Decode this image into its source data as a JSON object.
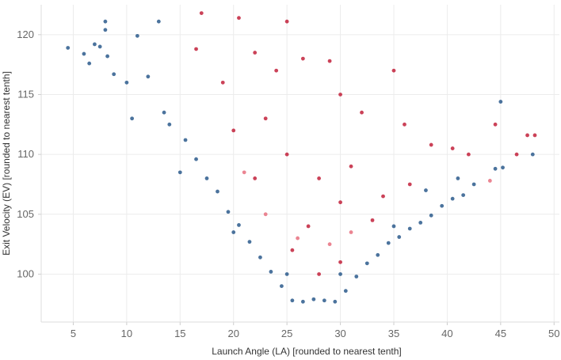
{
  "chart_data": {
    "type": "scatter",
    "title": "",
    "xlabel": "Launch Angle (LA) [rounded to nearest tenth]",
    "ylabel": "Exit Velocity (EV) [rounded to nearest tenth]",
    "xlim": [
      2,
      50.5
    ],
    "ylim": [
      96.0,
      122.5
    ],
    "x_ticks": [
      5,
      10,
      15,
      20,
      25,
      30,
      35,
      40,
      45,
      50
    ],
    "y_ticks": [
      100,
      105,
      110,
      115,
      120
    ],
    "grid": true,
    "legend": "none",
    "colors": {
      "blue": "#2b5a8c",
      "light_blue": "#6d95c2",
      "red": "#c2213b",
      "light_red": "#e8707f"
    },
    "series": [
      {
        "name": "blue",
        "color": "#2b5a8c",
        "points": [
          [
            4.5,
            118.9
          ],
          [
            6.0,
            118.4
          ],
          [
            6.5,
            117.6
          ],
          [
            7.0,
            119.2
          ],
          [
            7.5,
            119.0
          ],
          [
            8.0,
            121.1
          ],
          [
            8.0,
            120.4
          ],
          [
            8.2,
            118.2
          ],
          [
            8.8,
            116.7
          ],
          [
            10.0,
            116.0
          ],
          [
            11.0,
            119.9
          ],
          [
            13.0,
            121.1
          ],
          [
            12.0,
            116.5
          ],
          [
            13.5,
            113.5
          ],
          [
            14.0,
            112.5
          ],
          [
            15.5,
            111.2
          ],
          [
            16.5,
            109.6
          ],
          [
            17.5,
            108.0
          ],
          [
            18.5,
            106.9
          ],
          [
            19.5,
            105.2
          ],
          [
            20.5,
            104.1
          ],
          [
            21.5,
            102.7
          ],
          [
            22.5,
            101.4
          ],
          [
            23.5,
            100.2
          ],
          [
            24.5,
            99.0
          ],
          [
            25.5,
            97.8
          ],
          [
            26.5,
            97.7
          ],
          [
            27.5,
            97.9
          ],
          [
            28.5,
            97.8
          ],
          [
            29.5,
            97.7
          ],
          [
            30.5,
            98.6
          ],
          [
            31.5,
            99.8
          ],
          [
            32.5,
            100.9
          ],
          [
            33.5,
            101.6
          ],
          [
            34.5,
            102.6
          ],
          [
            35.5,
            103.1
          ],
          [
            36.5,
            103.8
          ],
          [
            37.5,
            104.3
          ],
          [
            38.5,
            104.9
          ],
          [
            39.5,
            105.7
          ],
          [
            40.5,
            106.3
          ],
          [
            41.5,
            106.6
          ],
          [
            42.5,
            107.5
          ],
          [
            44.5,
            108.8
          ],
          [
            45.0,
            114.4
          ],
          [
            45.2,
            108.9
          ],
          [
            48.0,
            110.0
          ],
          [
            10.5,
            113.0
          ],
          [
            15.0,
            108.5
          ],
          [
            20.0,
            103.5
          ],
          [
            25.0,
            100.0
          ],
          [
            30.0,
            100.0
          ],
          [
            35.0,
            104.0
          ],
          [
            38.0,
            107.0
          ],
          [
            41.0,
            108.0
          ]
        ]
      },
      {
        "name": "red",
        "color": "#c2213b",
        "points": [
          [
            17.0,
            121.8
          ],
          [
            20.5,
            121.4
          ],
          [
            25.0,
            121.1
          ],
          [
            16.5,
            118.8
          ],
          [
            22.0,
            118.5
          ],
          [
            24.0,
            117.0
          ],
          [
            26.5,
            118.0
          ],
          [
            29.0,
            117.8
          ],
          [
            35.0,
            117.0
          ],
          [
            30.0,
            115.0
          ],
          [
            32.0,
            113.5
          ],
          [
            36.0,
            112.5
          ],
          [
            38.5,
            110.8
          ],
          [
            40.5,
            110.5
          ],
          [
            42.0,
            110.0
          ],
          [
            44.5,
            112.5
          ],
          [
            46.5,
            110.0
          ],
          [
            47.5,
            111.6
          ],
          [
            48.2,
            111.6
          ],
          [
            25.0,
            110.0
          ],
          [
            28.0,
            108.0
          ],
          [
            30.0,
            106.0
          ],
          [
            27.0,
            104.0
          ],
          [
            25.5,
            102.0
          ],
          [
            28.0,
            100.0
          ],
          [
            30.0,
            101.0
          ],
          [
            33.0,
            104.5
          ],
          [
            22.0,
            108.0
          ],
          [
            20.0,
            112.0
          ],
          [
            19.0,
            116.0
          ],
          [
            23.0,
            113.0
          ],
          [
            31.0,
            109.0
          ],
          [
            34.0,
            106.5
          ],
          [
            36.5,
            107.5
          ]
        ]
      },
      {
        "name": "light_red",
        "color": "#e8707f",
        "points": [
          [
            44.0,
            107.8
          ],
          [
            21.0,
            108.5
          ],
          [
            23.0,
            105.0
          ],
          [
            26.0,
            103.0
          ],
          [
            29.0,
            102.5
          ],
          [
            31.0,
            103.5
          ]
        ]
      }
    ]
  }
}
